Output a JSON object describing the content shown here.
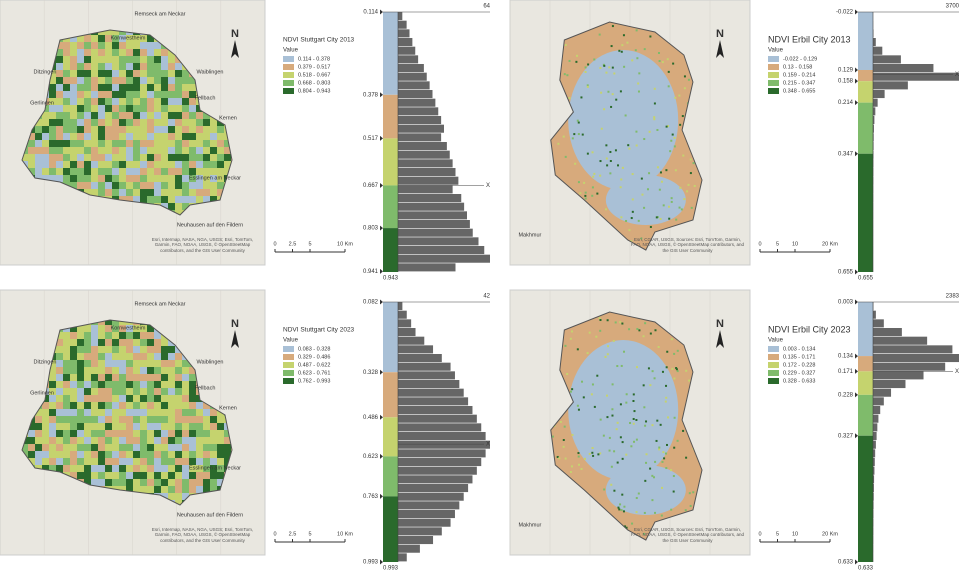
{
  "panels": [
    {
      "title": "NDVI Stuttgart City 2013",
      "value_label": "Value",
      "classes": [
        {
          "label": "0.114 - 0.378",
          "color": "#a9c0d6"
        },
        {
          "label": "0.379 - 0.517",
          "color": "#d7aa7c"
        },
        {
          "label": "0.518 - 0.667",
          "color": "#c5d36e"
        },
        {
          "label": "0.668 - 0.803",
          "color": "#7fbb6b"
        },
        {
          "label": "0.804 - 0.943",
          "color": "#2a6a2c"
        }
      ],
      "hist": {
        "ylim": [
          0.114,
          0.943
        ],
        "yticks": [
          0.114,
          0.378,
          0.517,
          0.667,
          0.803,
          0.941
        ],
        "xlim": [
          0,
          64
        ],
        "counts": [
          3,
          6,
          8,
          10,
          12,
          14,
          18,
          20,
          22,
          24,
          26,
          28,
          30,
          32,
          30,
          34,
          36,
          38,
          40,
          42,
          38,
          44,
          46,
          48,
          50,
          52,
          56,
          60,
          64,
          40
        ],
        "marker": {
          "label": "X",
          "value": 0.667
        }
      },
      "north": "N",
      "scale_bar": [
        "0",
        "2.5",
        "5",
        "10 Km"
      ],
      "places": [
        "Remseck am Neckar",
        "Kornwestheim",
        "Ditzingen",
        "Gerlingen",
        "Waiblingen",
        "Fellbach",
        "Kernen",
        "Esslingen am Neckar",
        "Neuhausen auf den Fildern"
      ],
      "attribution": "Esri, Intermap, NASA, NGA, USGS; Esri, TomTom, Garmin, FAO, NOAA, USGS, © OpenStreetMap contributors, and the GIS User Community"
    },
    {
      "title": "NDVI Erbil City 2013",
      "value_label": "Value",
      "classes": [
        {
          "label": "-0.022 - 0.129",
          "color": "#a9c0d6"
        },
        {
          "label": "0.13 - 0.158",
          "color": "#d7aa7c"
        },
        {
          "label": "0.159 - 0.214",
          "color": "#c5d36e"
        },
        {
          "label": "0.215 - 0.347",
          "color": "#7fbb6b"
        },
        {
          "label": "0.348 - 0.655",
          "color": "#2a6a2c"
        }
      ],
      "hist": {
        "ylim": [
          -0.022,
          0.655
        ],
        "yticks": [
          -0.022,
          0.129,
          0.158,
          0.214,
          0.347,
          0.655
        ],
        "xlim": [
          0,
          3700
        ],
        "counts": [
          2,
          5,
          20,
          120,
          400,
          1200,
          2600,
          3700,
          1500,
          500,
          200,
          100,
          60,
          40,
          30,
          25,
          20,
          15,
          12,
          10,
          8,
          6,
          5,
          4,
          3,
          3,
          2,
          2,
          1,
          1
        ],
        "marker": {
          "label": "X",
          "value": 0.14
        }
      },
      "north": "N",
      "scale_bar": [
        "0",
        "5",
        "10",
        "20 Km"
      ],
      "places": [
        "Makhmur"
      ],
      "attribution": "Esri, CGIAR, USGS, Sources: Esri, TomTom, Garmin, FAO, NOAA, USGS, © OpenStreetMap contributors, and the GIS User Community"
    },
    {
      "title": "NDVI Stuttgart City 2023",
      "value_label": "Value",
      "classes": [
        {
          "label": "0.083 - 0.328",
          "color": "#a9c0d6"
        },
        {
          "label": "0.329 - 0.486",
          "color": "#d7aa7c"
        },
        {
          "label": "0.487 - 0.622",
          "color": "#c5d36e"
        },
        {
          "label": "0.623 - 0.761",
          "color": "#7fbb6b"
        },
        {
          "label": "0.762 - 0.993",
          "color": "#2a6a2c"
        }
      ],
      "hist": {
        "ylim": [
          0.082,
          0.993
        ],
        "yticks": [
          0.082,
          0.328,
          0.486,
          0.623,
          0.763,
          0.993
        ],
        "xlim": [
          0,
          42
        ],
        "counts": [
          2,
          4,
          6,
          8,
          12,
          16,
          20,
          24,
          26,
          28,
          30,
          32,
          34,
          36,
          38,
          40,
          42,
          40,
          38,
          36,
          34,
          32,
          30,
          28,
          26,
          24,
          20,
          16,
          10,
          4
        ],
        "marker": {
          "label": "X",
          "value": 0.58
        }
      },
      "north": "N",
      "scale_bar": [
        "0",
        "2.5",
        "5",
        "10 Km"
      ],
      "places": [
        "Remseck am Neckar",
        "Kornwestheim",
        "Ditzingen",
        "Gerlingen",
        "Waiblingen",
        "Fellbach",
        "Kernen",
        "Esslingen am Neckar",
        "Neuhausen auf den Fildern"
      ],
      "attribution": "Esri, Intermap, NASA, NGA, USGS; Esri, TomTom, Garmin, FAO, NOAA, USGS, © OpenStreetMap contributors, and the GIS User Community"
    },
    {
      "title": "NDVI Erbil City 2023",
      "value_label": "Value",
      "classes": [
        {
          "label": "0.003 - 0.134",
          "color": "#a9c0d6"
        },
        {
          "label": "0.135 - 0.171",
          "color": "#d7aa7c"
        },
        {
          "label": "0.172 - 0.228",
          "color": "#c5d36e"
        },
        {
          "label": "0.229 - 0.327",
          "color": "#7fbb6b"
        },
        {
          "label": "0.328 - 0.633",
          "color": "#2a6a2c"
        }
      ],
      "hist": {
        "ylim": [
          0.003,
          0.633
        ],
        "yticks": [
          0.003,
          0.134,
          0.171,
          0.228,
          0.327,
          0.633
        ],
        "xlim": [
          0,
          2383
        ],
        "counts": [
          10,
          80,
          300,
          800,
          1500,
          2200,
          2383,
          2000,
          1400,
          900,
          500,
          300,
          200,
          150,
          120,
          100,
          80,
          60,
          50,
          40,
          30,
          25,
          20,
          15,
          10,
          8,
          6,
          4,
          2,
          1
        ],
        "marker": {
          "label": "X",
          "value": 0.171
        }
      },
      "north": "N",
      "scale_bar": [
        "0",
        "5",
        "10",
        "20 Km"
      ],
      "places": [
        "Makhmur"
      ],
      "attribution": "Esri, CGIAR, USGS, Sources: Esri, TomTom, Garmin, FAO, NOAA, USGS, © OpenStreetMap contributors, and the GIS User Community"
    }
  ]
}
